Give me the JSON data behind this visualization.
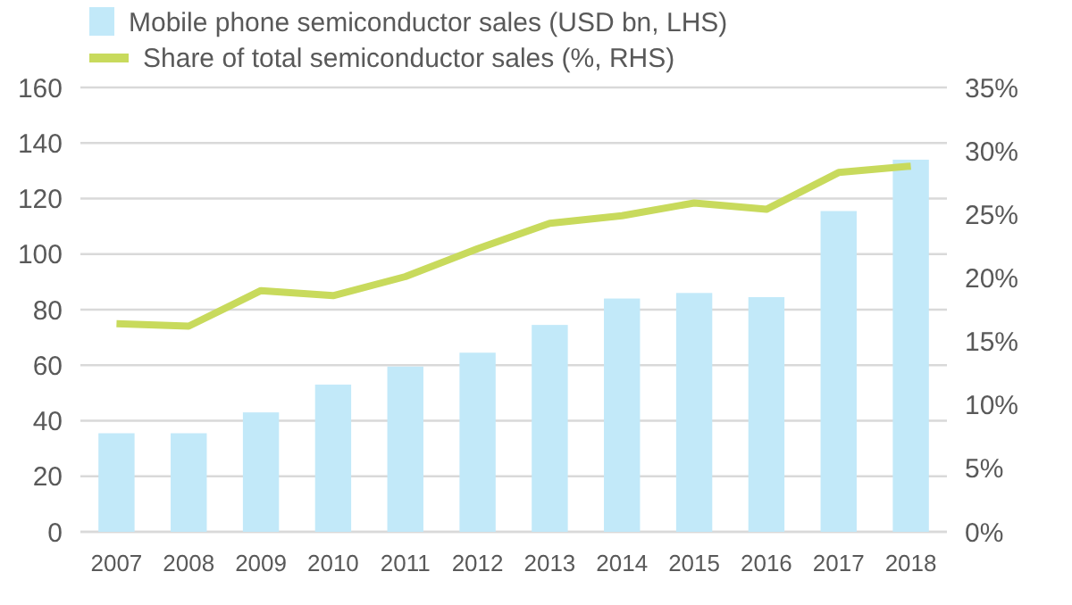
{
  "chart_data": {
    "type": "bar",
    "categories": [
      "2007",
      "2008",
      "2009",
      "2010",
      "2011",
      "2012",
      "2013",
      "2014",
      "2015",
      "2016",
      "2017",
      "2018"
    ],
    "series": [
      {
        "name": "Mobile phone semiconductor sales (USD bn, LHS)",
        "color": "#c2e9f9",
        "values": [
          35.5,
          35.5,
          43,
          53,
          59.5,
          64.5,
          74.5,
          84,
          86,
          84.5,
          115.5,
          134
        ]
      },
      {
        "name": "Share of total semiconductor sales (%, RHS)",
        "type": "line",
        "axis": "y2",
        "color": "#c8da5c",
        "values": [
          16.4,
          16.2,
          19.0,
          18.6,
          20.1,
          22.3,
          24.3,
          24.9,
          25.9,
          25.4,
          28.3,
          28.8
        ]
      }
    ],
    "ylim": [
      0,
      160
    ],
    "yticks": [
      0,
      20,
      40,
      60,
      80,
      100,
      120,
      140,
      160
    ],
    "y2lim": [
      0,
      35
    ],
    "y2ticks": [
      {
        "value": 0,
        "label": "0%"
      },
      {
        "value": 5,
        "label": "5%"
      },
      {
        "value": 10,
        "label": "10%"
      },
      {
        "value": 15,
        "label": "15%"
      },
      {
        "value": 20,
        "label": "20%"
      },
      {
        "value": 25,
        "label": "25%"
      },
      {
        "value": 30,
        "label": "30%"
      },
      {
        "value": 35,
        "label": "35%"
      }
    ],
    "grid": "y",
    "legend": "top left",
    "marker": "none",
    "line_style": "solid"
  }
}
